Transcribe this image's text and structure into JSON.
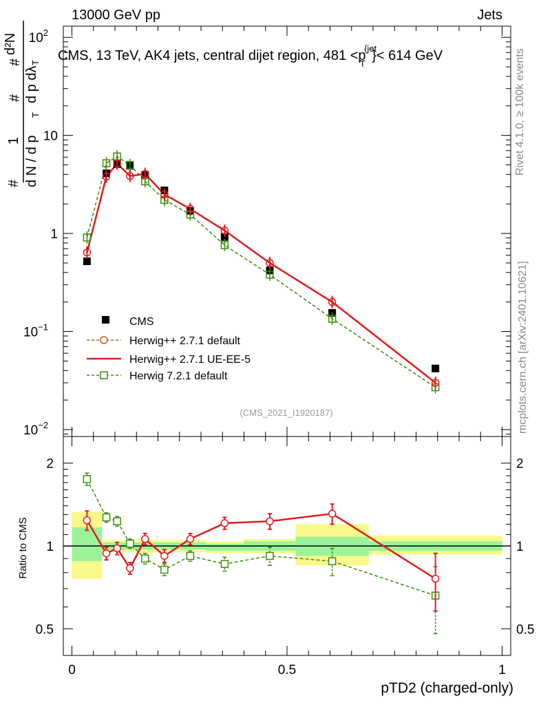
{
  "header": {
    "left": "13000 GeV pp",
    "right": "Jets",
    "side_rivet": "Rivet 4.1.0, ≥ 100k events",
    "side_mcplots": "mcplots.cern.ch [arXiv:2401.10621]"
  },
  "chart_data": [
    {
      "type": "scatter",
      "title": "CMS, 13 TeV, AK4 jets, central dijet region, 481 <p_T^{jet}< 614 GeV",
      "title_main": "CMS, 13 TeV, AK4 jets, central dijet region, 481 <p",
      "title_sup": "{jet",
      "title_sub": "T",
      "title_tail": "}< 614 GeV",
      "ylabel": "1/(dN/dp_T) d²N/(dp_T dλ)",
      "ylabel_parts": {
        "hash": "#",
        "one": "1",
        "dn": "d N / d p",
        "d2n": "d²N",
        "dpdl": "d p  dλ",
        "t": "T"
      },
      "yscale": "log",
      "ylim": [
        0.0085,
        130
      ],
      "yticks": [
        {
          "value": 100,
          "base": "10",
          "exp": "2"
        },
        {
          "value": 10,
          "base": "10",
          "exp": ""
        },
        {
          "value": 1,
          "base": "1",
          "exp": ""
        },
        {
          "value": 0.1,
          "base": "10",
          "exp": "−1"
        },
        {
          "value": 0.01,
          "base": "10",
          "exp": "−2"
        }
      ],
      "xlim": [
        -0.02,
        1.02
      ],
      "watermark": "(CMS_2021_I1920187)",
      "legend_position": "bottom-left",
      "x": [
        0.035,
        0.08,
        0.105,
        0.135,
        0.17,
        0.215,
        0.275,
        0.355,
        0.46,
        0.605,
        0.845
      ],
      "bin_edges": [
        0.0,
        0.07,
        0.09,
        0.12,
        0.15,
        0.19,
        0.24,
        0.31,
        0.4,
        0.52,
        0.69,
        1.0
      ],
      "series": [
        {
          "name": "CMS",
          "style": "data",
          "values": [
            0.52,
            4.1,
            5.1,
            4.9,
            3.95,
            2.75,
            1.7,
            0.92,
            0.42,
            0.155,
            0.042
          ]
        },
        {
          "name": "Herwig++ 2.7.1 default",
          "style": "herwig-default",
          "values": [
            0.64,
            3.8,
            5.15,
            3.85,
            4.05,
            2.5,
            1.78,
            1.07,
            0.5,
            0.2,
            0.03
          ]
        },
        {
          "name": "Herwig++ 2.7.1 UE-EE-5",
          "style": "herwig-ueee5",
          "values": [
            0.64,
            3.8,
            5.15,
            3.85,
            4.05,
            2.5,
            1.78,
            1.07,
            0.5,
            0.2,
            0.03
          ]
        },
        {
          "name": "Herwig 7.2.1 default",
          "style": "herwig7",
          "values": [
            0.91,
            5.2,
            6.1,
            5.0,
            3.4,
            2.2,
            1.56,
            0.76,
            0.38,
            0.135,
            0.027
          ]
        }
      ]
    },
    {
      "type": "scatter",
      "title": "",
      "xlabel": "pTD2 (charged-only)",
      "ylabel": "Ratio to CMS",
      "yscale": "log",
      "ylim": [
        0.4,
        2.5
      ],
      "yticks": [
        {
          "value": 2,
          "label": "2"
        },
        {
          "value": 1,
          "label": "1"
        },
        {
          "value": 0.5,
          "label": "0.5"
        }
      ],
      "xlim": [
        -0.02,
        1.02
      ],
      "xticks": [
        {
          "value": 0,
          "label": "0"
        },
        {
          "value": 0.5,
          "label": "0.5"
        },
        {
          "value": 1,
          "label": "1"
        }
      ],
      "x": [
        0.035,
        0.08,
        0.105,
        0.135,
        0.17,
        0.215,
        0.275,
        0.355,
        0.46,
        0.605,
        0.845
      ],
      "bin_edges": [
        0.0,
        0.07,
        0.09,
        0.12,
        0.15,
        0.19,
        0.24,
        0.31,
        0.4,
        0.52,
        0.69,
        1.0
      ],
      "data_band_green": [
        {
          "lo": 0.88,
          "hi": 1.17
        },
        {
          "lo": 0.97,
          "hi": 1.03
        },
        {
          "lo": 0.97,
          "hi": 1.03
        },
        {
          "lo": 0.97,
          "hi": 1.03
        },
        {
          "lo": 0.97,
          "hi": 1.03
        },
        {
          "lo": 0.97,
          "hi": 1.03
        },
        {
          "lo": 0.97,
          "hi": 1.03
        },
        {
          "lo": 0.96,
          "hi": 1.02
        },
        {
          "lo": 0.96,
          "hi": 1.04
        },
        {
          "lo": 0.92,
          "hi": 1.08
        },
        {
          "lo": 0.96,
          "hi": 1.04
        }
      ],
      "data_band_yellow": [
        {
          "lo": 0.76,
          "hi": 1.33
        },
        {
          "lo": 0.95,
          "hi": 1.05
        },
        {
          "lo": 0.95,
          "hi": 1.05
        },
        {
          "lo": 0.95,
          "hi": 1.05
        },
        {
          "lo": 0.94,
          "hi": 1.06
        },
        {
          "lo": 0.95,
          "hi": 1.05
        },
        {
          "lo": 0.95,
          "hi": 1.05
        },
        {
          "lo": 0.94,
          "hi": 1.04
        },
        {
          "lo": 0.94,
          "hi": 1.06
        },
        {
          "lo": 0.85,
          "hi": 1.2
        },
        {
          "lo": 0.93,
          "hi": 1.09
        }
      ],
      "series": [
        {
          "name": "Herwig++ 2.7.1 UE-EE-5",
          "style": "herwig-ueee5",
          "values": [
            1.24,
            0.94,
            0.98,
            0.83,
            1.06,
            0.92,
            1.06,
            1.21,
            1.23,
            1.31,
            0.76
          ],
          "errors": [
            0.1,
            0.05,
            0.05,
            0.04,
            0.05,
            0.05,
            0.05,
            0.06,
            0.08,
            0.11,
            0.18
          ]
        },
        {
          "name": "Herwig 7.2.1 default",
          "style": "herwig7",
          "values": [
            1.75,
            1.27,
            1.23,
            1.02,
            0.9,
            0.82,
            0.92,
            0.86,
            0.92,
            0.88,
            0.66
          ],
          "errors": [
            0.09,
            0.05,
            0.05,
            0.04,
            0.04,
            0.04,
            0.04,
            0.05,
            0.07,
            0.1,
            0.18
          ]
        }
      ]
    }
  ],
  "colors": {
    "data": "#000000",
    "herwig_default": "#b8641e",
    "herwig_ueee5": "#e41a1c",
    "herwig7": "#3a8c0a",
    "band_green": "#9af39a",
    "band_yellow": "#f9f98a",
    "grey_text": "#888888"
  }
}
